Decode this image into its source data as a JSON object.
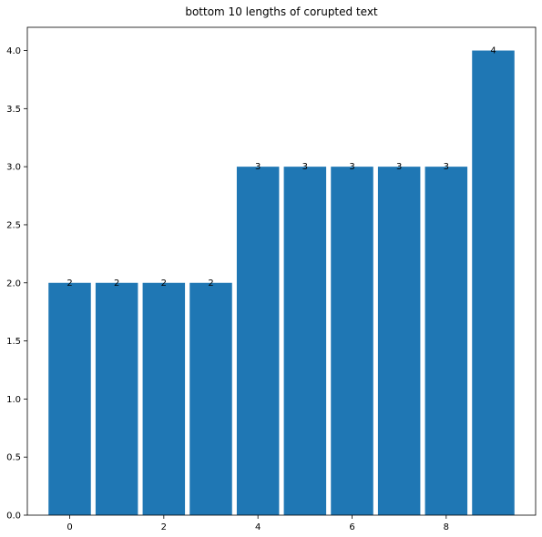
{
  "chart_data": {
    "type": "bar",
    "title": "bottom 10 lengths of corupted text",
    "xlabel": "",
    "ylabel": "",
    "x": [
      0,
      1,
      2,
      3,
      4,
      5,
      6,
      7,
      8,
      9
    ],
    "values": [
      2,
      2,
      2,
      2,
      3,
      3,
      3,
      3,
      3,
      4
    ],
    "data_labels": [
      "2",
      "2",
      "2",
      "2",
      "3",
      "3",
      "3",
      "3",
      "3",
      "4"
    ],
    "xlim": [
      -0.9,
      9.9
    ],
    "ylim": [
      0.0,
      4.2
    ],
    "xticks": [
      0,
      2,
      4,
      6,
      8
    ],
    "xtick_labels": [
      "0",
      "2",
      "4",
      "6",
      "8"
    ],
    "yticks": [
      0.0,
      0.5,
      1.0,
      1.5,
      2.0,
      2.5,
      3.0,
      3.5,
      4.0
    ],
    "ytick_labels": [
      "0.0",
      "0.5",
      "1.0",
      "1.5",
      "2.0",
      "2.5",
      "3.0",
      "3.5",
      "4.0"
    ],
    "bar_color": "#1f77b4",
    "grid": false,
    "legend": "none"
  }
}
